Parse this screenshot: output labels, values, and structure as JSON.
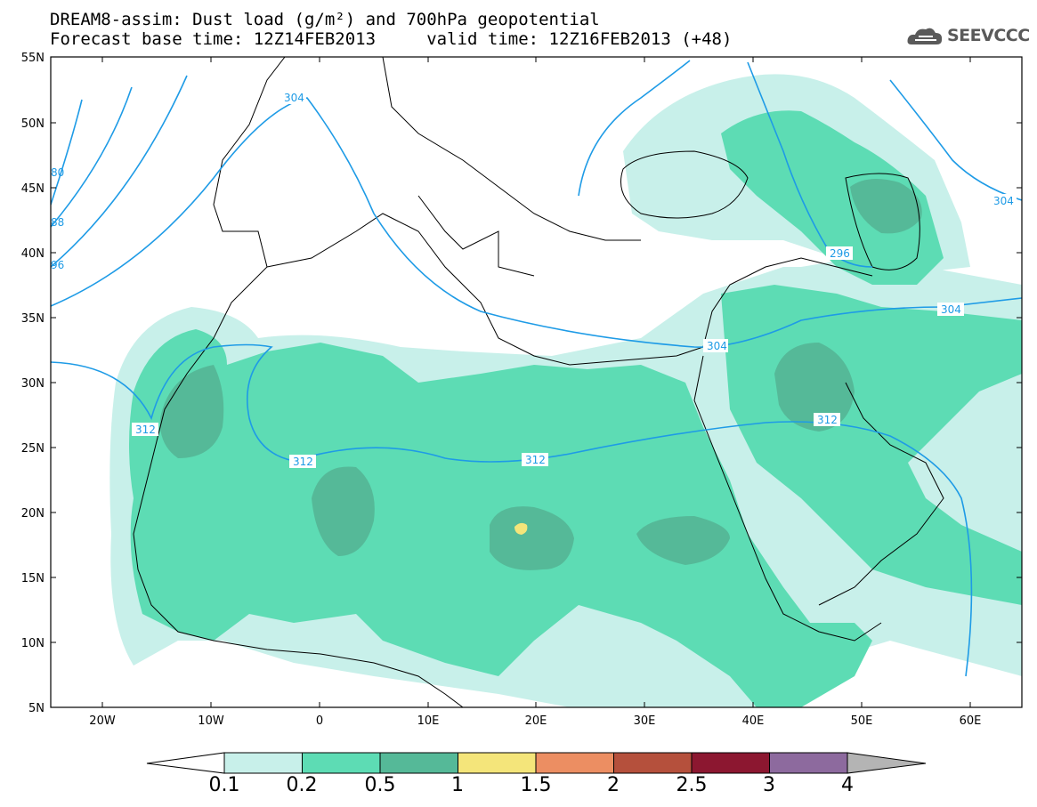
{
  "title": {
    "line1": "DREAM8-assim: Dust load (g/m²) and 700hPa geopotential",
    "line2": "Forecast base time: 12Z14FEB2013     valid time: 12Z16FEB2013 (+48)"
  },
  "logo": {
    "text": "SEEVCCC",
    "icon": "cloud-logo-icon"
  },
  "map": {
    "lat_labels": [
      "55N",
      "50N",
      "45N",
      "40N",
      "35N",
      "30N",
      "25N",
      "20N",
      "15N",
      "10N",
      "5N"
    ],
    "lon_labels": [
      "20W",
      "10W",
      "0",
      "10E",
      "20E",
      "30E",
      "40E",
      "50E",
      "60E"
    ],
    "contour_labels": [
      "304",
      "80",
      "88",
      "96",
      "312",
      "312",
      "312",
      "312",
      "304",
      "296",
      "304",
      "304"
    ]
  },
  "colorbar": {
    "labels": [
      "0.1",
      "0.2",
      "0.5",
      "1",
      "1.5",
      "2",
      "2.5",
      "3",
      "4"
    ],
    "colors": [
      "#c8f0ea",
      "#5ddcb4",
      "#55b998",
      "#f4e57a",
      "#ec8e62",
      "#b5503c",
      "#8c1730",
      "#8d6a9e",
      "#b4b4b4"
    ]
  }
}
